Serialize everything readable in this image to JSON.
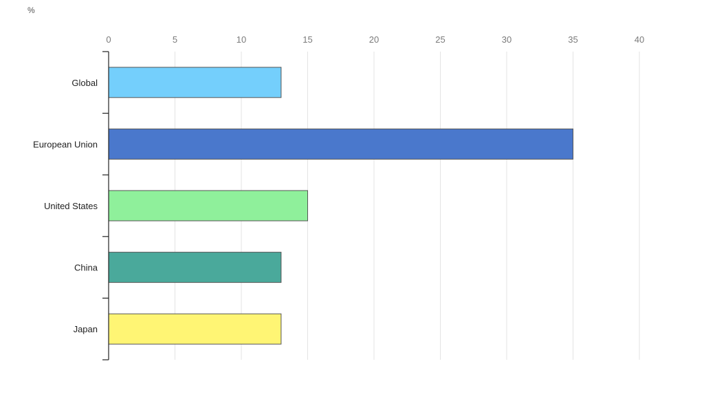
{
  "chart_data": {
    "type": "bar",
    "orientation": "horizontal",
    "unit_label": "%",
    "categories": [
      "Global",
      "European Union",
      "United States",
      "China",
      "Japan"
    ],
    "values": [
      13,
      35,
      15,
      13,
      13
    ],
    "colors": [
      "#74cffc",
      "#4a78cc",
      "#8ff09b",
      "#4aa99b",
      "#fff574"
    ],
    "xlim": [
      0,
      40
    ],
    "xticks": [
      0,
      5,
      10,
      15,
      20,
      25,
      30,
      35,
      40
    ],
    "x_axis_position": "top",
    "grid": true
  }
}
